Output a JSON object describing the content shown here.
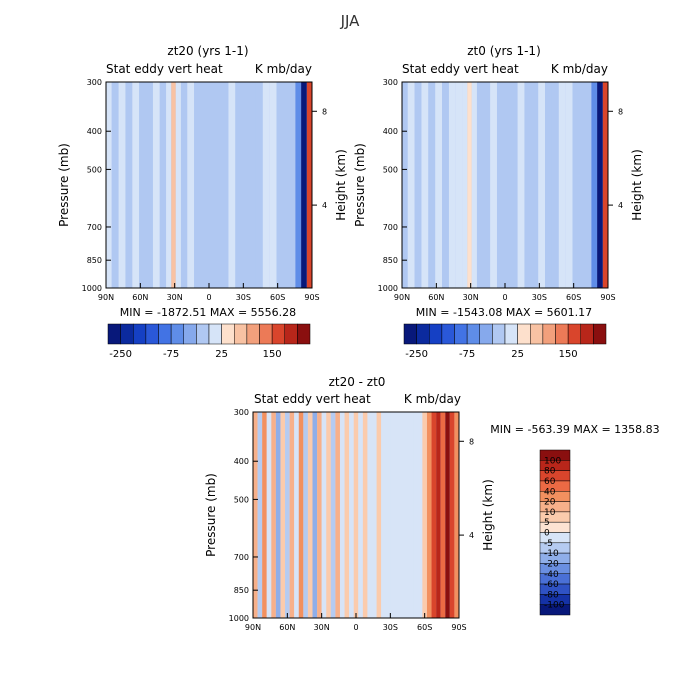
{
  "figure_title": "JJA",
  "chart_data": [
    {
      "type": "heatmap",
      "panel": "zt20",
      "title": "zt20 (yrs 1-1)",
      "subtitle_left": "Stat eddy vert heat",
      "subtitle_right": "K mb/day",
      "xlabel": "",
      "ylabel": "Pressure (mb)",
      "ylabel_right": "Height (km)",
      "x_ticks": [
        "90N",
        "60N",
        "30N",
        "0",
        "30S",
        "60S",
        "90S"
      ],
      "x_range": [
        90,
        -90
      ],
      "y_ticks": [
        "300",
        "400",
        "500",
        "700",
        "850",
        "1000"
      ],
      "y_tick_values": [
        300,
        400,
        500,
        700,
        850,
        1000
      ],
      "y_range": [
        300,
        1000
      ],
      "height_ticks": [
        "8",
        "4"
      ],
      "min_max_text": "MIN = -1872.51   MAX = 5556.28",
      "colorbar_labels": [
        "-250",
        "-75",
        "25",
        "150"
      ],
      "columns": [
        {
          "lat": 88,
          "v": 5
        },
        {
          "lat": 82,
          "v": -5
        },
        {
          "lat": 76,
          "v": 5
        },
        {
          "lat": 70,
          "v": -5
        },
        {
          "lat": 64,
          "v": 5
        },
        {
          "lat": 58,
          "v": -5
        },
        {
          "lat": 52,
          "v": -5
        },
        {
          "lat": 46,
          "v": 5
        },
        {
          "lat": 40,
          "v": -5
        },
        {
          "lat": 35,
          "v": 10
        },
        {
          "lat": 31,
          "v": 60
        },
        {
          "lat": 27,
          "v": 20
        },
        {
          "lat": 22,
          "v": -5
        },
        {
          "lat": 16,
          "v": 5
        },
        {
          "lat": 10,
          "v": -5
        },
        {
          "lat": 4,
          "v": -5
        },
        {
          "lat": -2,
          "v": -5
        },
        {
          "lat": -8,
          "v": -5
        },
        {
          "lat": -14,
          "v": -5
        },
        {
          "lat": -20,
          "v": 5
        },
        {
          "lat": -26,
          "v": -5
        },
        {
          "lat": -32,
          "v": -5
        },
        {
          "lat": -38,
          "v": -5
        },
        {
          "lat": -44,
          "v": -5
        },
        {
          "lat": -50,
          "v": 5
        },
        {
          "lat": -56,
          "v": 10
        },
        {
          "lat": -62,
          "v": -5
        },
        {
          "lat": -68,
          "v": -5
        },
        {
          "lat": -73,
          "v": -20
        },
        {
          "lat": -78,
          "v": -75
        },
        {
          "lat": -83,
          "v": -250
        },
        {
          "lat": -88,
          "v": 150
        }
      ]
    },
    {
      "type": "heatmap",
      "panel": "zt0",
      "title": "zt0 (yrs 1-1)",
      "subtitle_left": "Stat eddy vert heat",
      "subtitle_right": "K mb/day",
      "xlabel": "",
      "ylabel": "Pressure (mb)",
      "ylabel_right": "Height (km)",
      "x_ticks": [
        "90N",
        "60N",
        "30N",
        "0",
        "30S",
        "60S",
        "90S"
      ],
      "x_range": [
        90,
        -90
      ],
      "y_ticks": [
        "300",
        "400",
        "500",
        "700",
        "850",
        "1000"
      ],
      "y_tick_values": [
        300,
        400,
        500,
        700,
        850,
        1000
      ],
      "y_range": [
        300,
        1000
      ],
      "height_ticks": [
        "8",
        "4"
      ],
      "min_max_text": "MIN = -1543.08   MAX = 5601.17",
      "colorbar_labels": [
        "-250",
        "-75",
        "25",
        "150"
      ],
      "columns": [
        {
          "lat": 88,
          "v": -5
        },
        {
          "lat": 82,
          "v": 5
        },
        {
          "lat": 76,
          "v": -5
        },
        {
          "lat": 70,
          "v": 5
        },
        {
          "lat": 64,
          "v": -5
        },
        {
          "lat": 58,
          "v": 5
        },
        {
          "lat": 52,
          "v": -5
        },
        {
          "lat": 46,
          "v": 5
        },
        {
          "lat": 40,
          "v": 5
        },
        {
          "lat": 35,
          "v": 10
        },
        {
          "lat": 31,
          "v": 40
        },
        {
          "lat": 27,
          "v": 10
        },
        {
          "lat": 22,
          "v": -5
        },
        {
          "lat": 16,
          "v": -5
        },
        {
          "lat": 10,
          "v": 5
        },
        {
          "lat": 4,
          "v": -5
        },
        {
          "lat": -2,
          "v": -5
        },
        {
          "lat": -8,
          "v": -5
        },
        {
          "lat": -14,
          "v": 5
        },
        {
          "lat": -20,
          "v": -5
        },
        {
          "lat": -26,
          "v": -5
        },
        {
          "lat": -32,
          "v": 5
        },
        {
          "lat": -38,
          "v": -5
        },
        {
          "lat": -44,
          "v": -5
        },
        {
          "lat": -50,
          "v": 5
        },
        {
          "lat": -56,
          "v": 10
        },
        {
          "lat": -62,
          "v": -5
        },
        {
          "lat": -68,
          "v": -5
        },
        {
          "lat": -73,
          "v": -20
        },
        {
          "lat": -78,
          "v": -75
        },
        {
          "lat": -83,
          "v": -250
        },
        {
          "lat": -88,
          "v": 150
        }
      ]
    },
    {
      "type": "heatmap",
      "panel": "diff",
      "title": "zt20 - zt0",
      "subtitle_left": "Stat eddy vert heat",
      "subtitle_right": "K mb/day",
      "xlabel": "",
      "ylabel": "Pressure (mb)",
      "ylabel_right": "Height (km)",
      "x_ticks": [
        "90N",
        "60N",
        "30N",
        "0",
        "30S",
        "60S",
        "90S"
      ],
      "x_range": [
        90,
        -90
      ],
      "y_ticks": [
        "300",
        "400",
        "500",
        "700",
        "850",
        "1000"
      ],
      "y_tick_values": [
        300,
        400,
        500,
        700,
        850,
        1000
      ],
      "y_range": [
        300,
        1000
      ],
      "height_ticks": [
        "8",
        "4"
      ],
      "min_max_text": "MIN = -563.39   MAX = 1358.83",
      "colorbar_labels": [
        "100",
        "80",
        "60",
        "40",
        "20",
        "10",
        "5",
        "0",
        "-5",
        "-10",
        "-20",
        "-40",
        "-60",
        "-80",
        "-100"
      ],
      "columns": [
        {
          "lat": 88,
          "v": 10
        },
        {
          "lat": 84,
          "v": -10
        },
        {
          "lat": 80,
          "v": 20
        },
        {
          "lat": 76,
          "v": -5
        },
        {
          "lat": 72,
          "v": 10
        },
        {
          "lat": 68,
          "v": -20
        },
        {
          "lat": 64,
          "v": 5
        },
        {
          "lat": 60,
          "v": -10
        },
        {
          "lat": 56,
          "v": 10
        },
        {
          "lat": 52,
          "v": -5
        },
        {
          "lat": 48,
          "v": 20
        },
        {
          "lat": 44,
          "v": -10
        },
        {
          "lat": 40,
          "v": 5
        },
        {
          "lat": 36,
          "v": -20
        },
        {
          "lat": 32,
          "v": 10
        },
        {
          "lat": 28,
          "v": -5
        },
        {
          "lat": 24,
          "v": 5
        },
        {
          "lat": 20,
          "v": -10
        },
        {
          "lat": 16,
          "v": 10
        },
        {
          "lat": 12,
          "v": -5
        },
        {
          "lat": 8,
          "v": 5
        },
        {
          "lat": 4,
          "v": -5
        },
        {
          "lat": 0,
          "v": 5
        },
        {
          "lat": -4,
          "v": -5
        },
        {
          "lat": -8,
          "v": 5
        },
        {
          "lat": -12,
          "v": -5
        },
        {
          "lat": -16,
          "v": -5
        },
        {
          "lat": -20,
          "v": 5
        },
        {
          "lat": -24,
          "v": -5
        },
        {
          "lat": -28,
          "v": -5
        },
        {
          "lat": -32,
          "v": -5
        },
        {
          "lat": -36,
          "v": -5
        },
        {
          "lat": -40,
          "v": -5
        },
        {
          "lat": -44,
          "v": -5
        },
        {
          "lat": -48,
          "v": -5
        },
        {
          "lat": -52,
          "v": -5
        },
        {
          "lat": -56,
          "v": -5
        },
        {
          "lat": -60,
          "v": 5
        },
        {
          "lat": -64,
          "v": 20
        },
        {
          "lat": -68,
          "v": 60
        },
        {
          "lat": -72,
          "v": 80
        },
        {
          "lat": -76,
          "v": 40
        },
        {
          "lat": -80,
          "v": 100
        },
        {
          "lat": -84,
          "v": 60
        },
        {
          "lat": -88,
          "v": 20
        }
      ]
    }
  ],
  "colors": {
    "levels_main": [
      -250,
      -200,
      -150,
      -125,
      -100,
      -75,
      -50,
      -25,
      0,
      25,
      50,
      75,
      100,
      150,
      200,
      250
    ],
    "palette_main": [
      "#08187a",
      "#0b2a9e",
      "#1540c4",
      "#2a58d8",
      "#4273e4",
      "#5f8de8",
      "#86a9ec",
      "#b0c8f2",
      "#d6e4f8",
      "#fde0cc",
      "#f8c2a3",
      "#f2a07c",
      "#ec7a57",
      "#d9452c",
      "#b8261a",
      "#8a0f0f"
    ],
    "levels_diff": [
      100,
      80,
      60,
      40,
      20,
      10,
      5,
      0,
      -5,
      -10,
      -20,
      -40,
      -60,
      -80,
      -100
    ],
    "palette_diff": [
      "#8a0f0f",
      "#b8261a",
      "#d9452c",
      "#ec6a44",
      "#f2905f",
      "#f7b08a",
      "#fbcbac",
      "#fde3d2",
      "#d7e4f7",
      "#b5cbf1",
      "#8faee9",
      "#6a8fe1",
      "#4a70d6",
      "#2f52c4",
      "#1532a6",
      "#08187a"
    ]
  }
}
